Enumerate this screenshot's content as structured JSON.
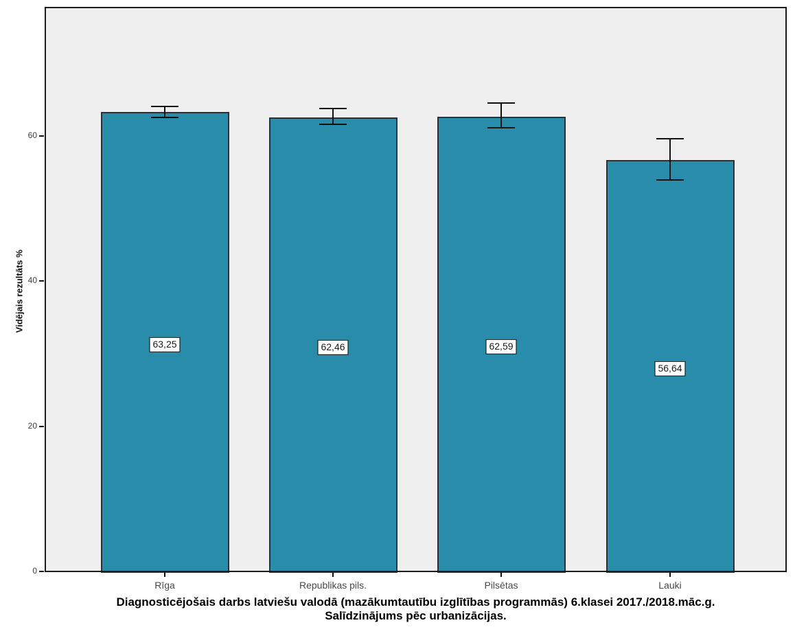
{
  "figure": {
    "background": "#ffffff",
    "plot_background": "#efefef",
    "bar_color": "#288caa",
    "bar_border_color": "#24333a",
    "error_bar_color": "#111111",
    "frame_color": "#1c1c1c"
  },
  "chart_data": {
    "type": "bar",
    "title": "Diagnosticējošais darbs latviešu valodā (mazākumtautību izglītības programmās) 6.klasei 2017./2018.māc.g. Salīdzinājums pēc urbanizācijas.",
    "title_lines": [
      "Diagnosticējošais darbs latviešu valodā (mazākumtautību izglītības programmās) 6.klasei 2017./2018.māc.g.",
      "Salīdzinājums pēc urbanizācijas."
    ],
    "ylabel": "Vidējais rezultāts %",
    "xlabel": "",
    "categories": [
      "Rīga",
      "Republikas pils.",
      "Pilsētas",
      "Lauki"
    ],
    "values": [
      63.25,
      62.46,
      62.59,
      56.64
    ],
    "value_labels": [
      "63,25",
      "62,46",
      "62,59",
      "56,64"
    ],
    "error_bars": [
      {
        "lower": 62.5,
        "upper": 64.0
      },
      {
        "lower": 61.6,
        "upper": 63.7
      },
      {
        "lower": 61.1,
        "upper": 64.5
      },
      {
        "lower": 53.9,
        "upper": 59.6
      }
    ],
    "yticks": [
      0,
      20,
      40,
      60
    ],
    "ylim": [
      0,
      77.5
    ],
    "grid": false,
    "legend": null,
    "decimal_separator": ","
  }
}
